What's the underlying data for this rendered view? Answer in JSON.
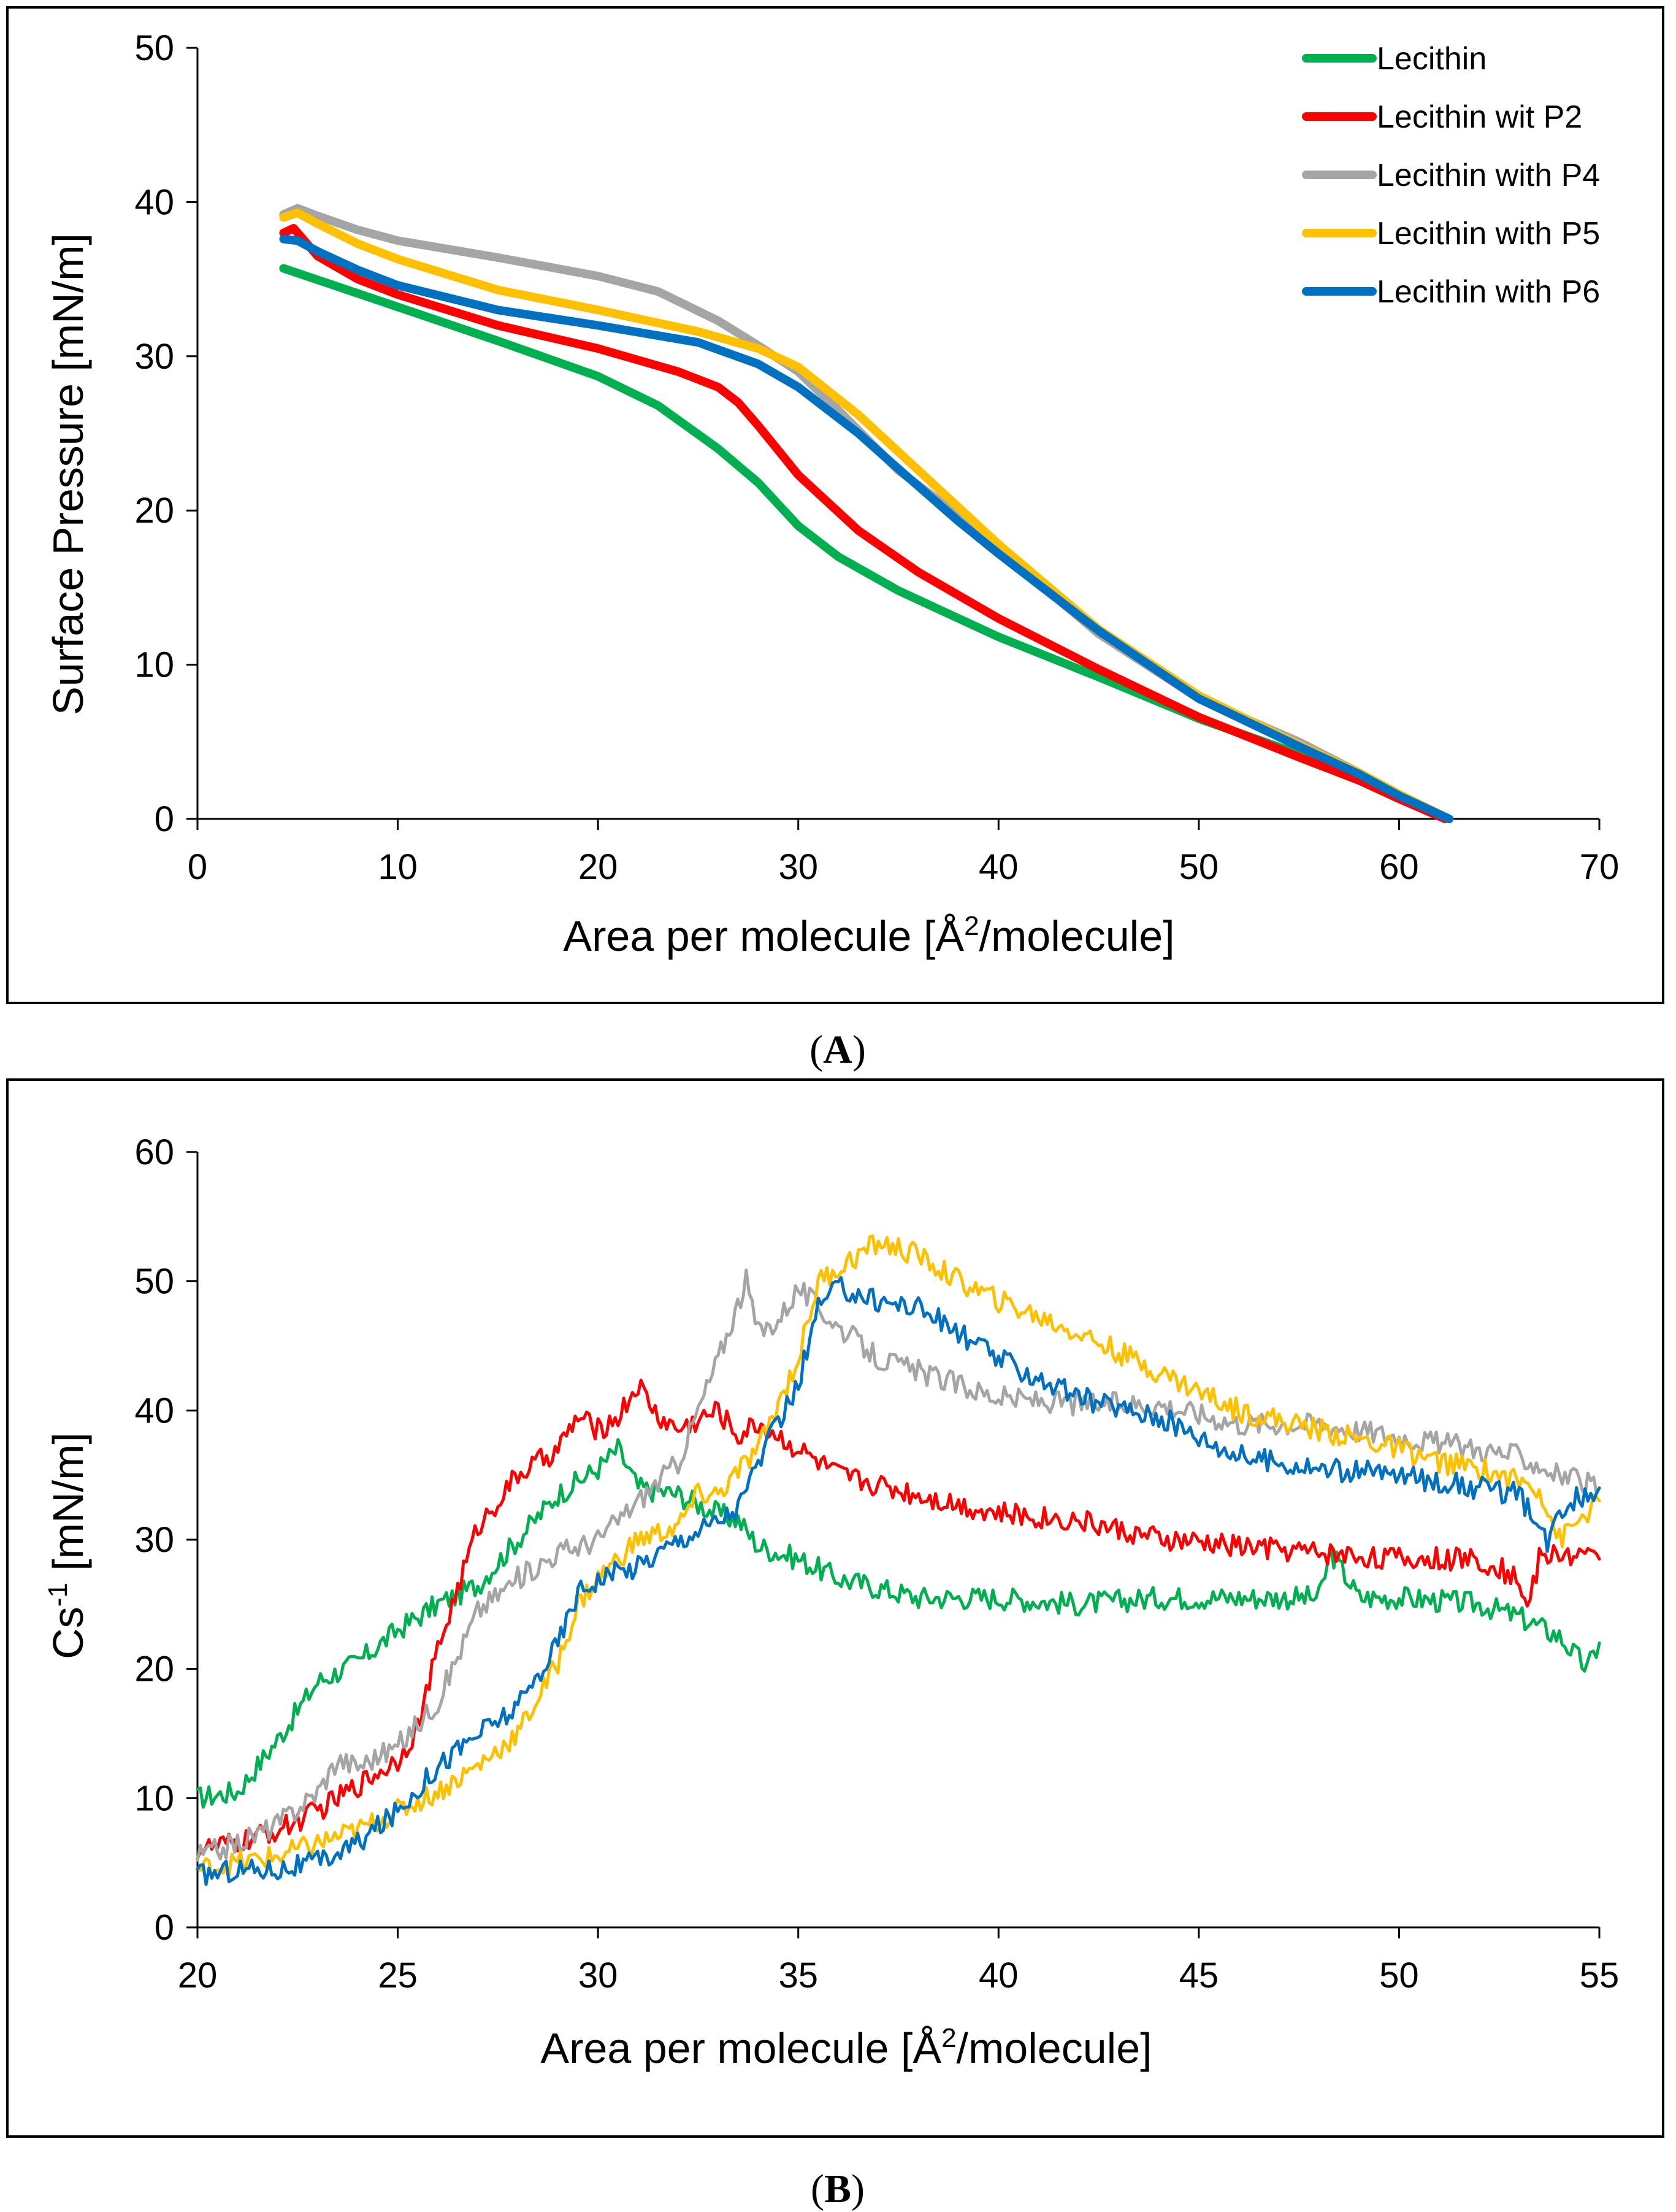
{
  "series_colors": {
    "Lecithin": "#00b050",
    "Lecithin wit P2": "#ff0000",
    "Lecithin with P4": "#a5a5a5",
    "Lecithin with P5": "#ffc000",
    "Lecithin with P6": "#0070c0"
  },
  "chart_data": [
    {
      "type": "line",
      "panel": "A",
      "panel_label": {
        "open": "(",
        "letter": "A",
        "close": ")"
      },
      "title": "",
      "xlabel_prefix": "Area per molecule [Å",
      "xlabel_sup": "2",
      "xlabel_suffix": "/molecule]",
      "ylabel": "Surface Pressure [mN/m]",
      "xlim": [
        0,
        70
      ],
      "ylim": [
        0,
        50
      ],
      "xticks": [
        0,
        10,
        20,
        30,
        40,
        50,
        60,
        70
      ],
      "yticks": [
        0,
        10,
        20,
        30,
        40,
        50
      ],
      "grid": false,
      "legend_position": "top-right",
      "series": [
        {
          "name": "Lecithin",
          "x": [
            4.3,
            10,
            15,
            20,
            23,
            26,
            28,
            30,
            32,
            35,
            38,
            40,
            45,
            50,
            55,
            58,
            60,
            62.5
          ],
          "y": [
            35.7,
            33.2,
            31,
            28.7,
            26.8,
            24,
            21.8,
            19,
            17,
            14.8,
            13,
            11.8,
            9.2,
            6.5,
            4.2,
            2.5,
            1.4,
            0
          ]
        },
        {
          "name": "Lecithin wit P2",
          "x": [
            4.3,
            4.8,
            6,
            8,
            10,
            15,
            20,
            24,
            26,
            27,
            28,
            30,
            33,
            36,
            40,
            45,
            50,
            55,
            58,
            60,
            62.3
          ],
          "y": [
            38,
            38.3,
            36.5,
            35,
            34,
            32,
            30.5,
            29,
            28,
            27,
            25.5,
            22.3,
            18.7,
            16,
            13,
            9.7,
            6.6,
            4,
            2.5,
            1.3,
            0
          ]
        },
        {
          "name": "Lecithin with P4",
          "x": [
            4.3,
            5,
            6,
            8,
            10,
            15,
            20,
            23,
            26,
            28,
            30,
            32,
            35,
            38,
            40,
            45,
            50,
            55,
            58,
            60,
            62.5
          ],
          "y": [
            39.2,
            39.6,
            39.1,
            38.2,
            37.5,
            36.4,
            35.2,
            34.2,
            32.3,
            30.7,
            29,
            26.5,
            22.6,
            19.7,
            17.5,
            12,
            7.8,
            5,
            3,
            1.6,
            0
          ]
        },
        {
          "name": "Lecithin with P5",
          "x": [
            4.3,
            5,
            6,
            8,
            10,
            15,
            20,
            25,
            28,
            30,
            33,
            35,
            38,
            40,
            45,
            50,
            55,
            58,
            60,
            62.5
          ],
          "y": [
            39,
            39.3,
            38.6,
            37.3,
            36.3,
            34.3,
            33,
            31.6,
            30.5,
            29.3,
            26.2,
            23.8,
            20.2,
            17.8,
            12.3,
            8,
            4.8,
            3,
            1.6,
            0
          ]
        },
        {
          "name": "Lecithin with P6",
          "x": [
            4.3,
            5,
            6,
            8,
            10,
            15,
            20,
            25,
            28,
            30,
            33,
            35,
            38,
            40,
            45,
            50,
            55,
            58,
            60,
            62.5
          ],
          "y": [
            37.6,
            37.5,
            36.8,
            35.6,
            34.6,
            33,
            32,
            30.9,
            29.5,
            28,
            25,
            22.7,
            19.3,
            17.2,
            12.2,
            7.8,
            4.7,
            2.9,
            1.5,
            0
          ]
        }
      ]
    },
    {
      "type": "line",
      "panel": "B",
      "panel_label": {
        "open": "(",
        "letter": "B",
        "close": ")"
      },
      "title": "",
      "xlabel_prefix": "Area per molecule [Å",
      "xlabel_sup": "2",
      "xlabel_suffix": "/molecule]",
      "ylabel_prefix": "Cs",
      "ylabel_sup": "-1",
      "ylabel_suffix": " [mN/m]",
      "xlim": [
        20,
        55
      ],
      "ylim": [
        0,
        60
      ],
      "xticks": [
        20,
        25,
        30,
        35,
        40,
        45,
        50,
        55
      ],
      "yticks": [
        0,
        10,
        20,
        30,
        40,
        50,
        60
      ],
      "grid": false,
      "legend": "none",
      "series": [
        {
          "name": "Lecithin",
          "x": [
            20,
            21,
            22,
            23,
            24,
            25,
            26,
            27,
            28,
            29,
            30,
            30.5,
            31,
            32,
            33,
            33.5,
            34,
            35,
            36,
            38,
            40,
            42,
            44,
            46,
            48,
            48.3,
            49,
            50,
            52,
            53,
            54,
            54.7,
            55
          ],
          "y": [
            10,
            10.5,
            14.5,
            19,
            20.5,
            23,
            25,
            26.5,
            30,
            33.5,
            35.5,
            37,
            34,
            33.5,
            32,
            31.5,
            29.5,
            28.5,
            27,
            25.5,
            25.5,
            25,
            25.5,
            25.5,
            25.5,
            29,
            25.5,
            25.5,
            25,
            24,
            22.5,
            20,
            22
          ]
        },
        {
          "name": "Lecithin wit P2",
          "x": [
            20,
            21,
            22,
            23,
            24,
            25,
            25.5,
            26,
            27,
            28,
            29,
            29.5,
            30,
            30.5,
            31,
            31.5,
            32,
            33,
            33.5,
            34,
            35,
            36,
            38,
            40,
            42,
            44,
            46,
            48,
            50,
            52,
            53,
            53.2,
            53.5,
            54,
            55
          ],
          "y": [
            6,
            6.5,
            7.5,
            9,
            11,
            13,
            15.5,
            21.5,
            31,
            35,
            37,
            39.5,
            38.5,
            39.5,
            42,
            39.5,
            38.5,
            40,
            38,
            39,
            37,
            35,
            33.5,
            32,
            31.5,
            30,
            29.5,
            29,
            28.5,
            28.5,
            27,
            24.5,
            28.5,
            29,
            28.5
          ]
        },
        {
          "name": "Lecithin with P4",
          "x": [
            20,
            21,
            22,
            23,
            23.5,
            24,
            25,
            26,
            27,
            28,
            29,
            30,
            31,
            32,
            32.5,
            33,
            33.7,
            34,
            34.5,
            35,
            35.5,
            36,
            37,
            38,
            40,
            42,
            44,
            46,
            48,
            50,
            52,
            53,
            54,
            55
          ],
          "y": [
            5.5,
            6.5,
            8,
            10.5,
            13,
            12.5,
            14,
            17.5,
            24.5,
            27,
            29,
            30,
            33,
            36,
            40,
            44,
            50,
            46,
            47,
            49.5,
            48,
            46.5,
            44,
            43,
            41,
            40.5,
            40.5,
            39,
            39,
            38,
            37,
            36.5,
            35,
            34
          ]
        },
        {
          "name": "Lecithin with P5",
          "x": [
            20,
            21,
            22,
            23,
            24,
            25,
            26,
            27,
            28,
            29,
            29.5,
            30,
            31,
            32,
            32.5,
            33,
            34,
            35,
            35.5,
            36,
            37,
            38,
            39,
            40,
            42,
            44,
            46,
            48,
            50,
            51,
            52,
            53,
            53.5,
            54,
            55
          ],
          "y": [
            4.5,
            5,
            5.5,
            6.5,
            7.5,
            9,
            10.5,
            12.5,
            15,
            20.5,
            25,
            27,
            30,
            31,
            33.5,
            33.5,
            37,
            44,
            50,
            51,
            53,
            52,
            50,
            48.5,
            46,
            43,
            40,
            38.5,
            37,
            36,
            35.5,
            34.5,
            34,
            30,
            33
          ]
        },
        {
          "name": "Lecithin with P6",
          "x": [
            20,
            21,
            22,
            23,
            24,
            25,
            26,
            27,
            28,
            29,
            29.5,
            30,
            31,
            32,
            33,
            33.5,
            34,
            35,
            35.5,
            36,
            37,
            38,
            39,
            40,
            42,
            44,
            45,
            46,
            48,
            50,
            52,
            53,
            53.7,
            54,
            55
          ],
          "y": [
            4,
            4.5,
            4.5,
            5,
            6.5,
            9,
            12.5,
            15,
            17,
            22,
            26,
            27,
            28,
            30,
            31.5,
            32.5,
            36,
            42,
            48,
            49.5,
            48.5,
            48,
            46,
            44,
            41,
            39.5,
            38,
            36.5,
            35.5,
            35,
            34,
            33.5,
            29.5,
            32.5,
            34
          ]
        }
      ]
    }
  ]
}
